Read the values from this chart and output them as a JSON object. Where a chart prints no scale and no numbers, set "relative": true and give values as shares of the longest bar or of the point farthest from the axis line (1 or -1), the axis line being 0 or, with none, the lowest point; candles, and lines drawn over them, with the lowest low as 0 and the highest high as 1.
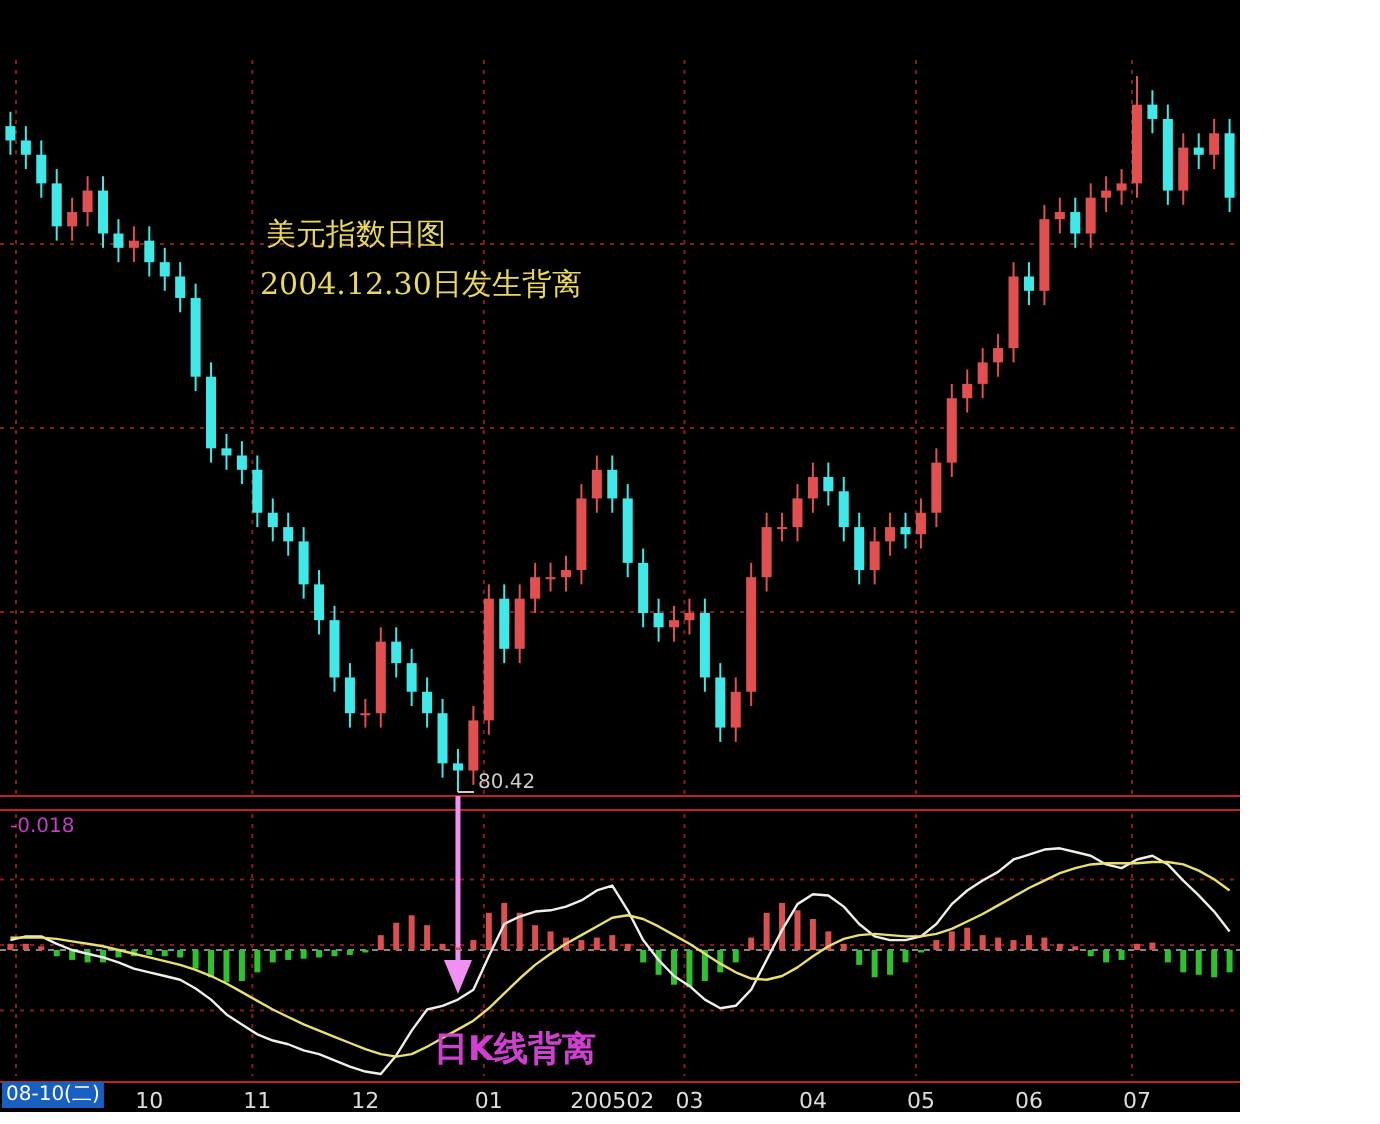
{
  "chart_data": [
    {
      "type": "candlestick",
      "relative": true,
      "tick_labels": false,
      "grid": true,
      "colors": [
        "#40e8e8",
        "#40e8e8",
        "#40e8e8",
        "#40e8e8",
        "#e05050",
        "#e05050",
        "#40e8e8",
        "#40e8e8",
        "#e05050",
        "#40e8e8",
        "#40e8e8",
        "#40e8e8",
        "#40e8e8",
        "#40e8e8",
        "#40e8e8",
        "#40e8e8",
        "#40e8e8",
        "#40e8e8",
        "#40e8e8",
        "#40e8e8",
        "#40e8e8",
        "#40e8e8",
        "#40e8e8",
        "#e05050",
        "#e05050",
        "#40e8e8",
        "#40e8e8",
        "#40e8e8",
        "#40e8e8",
        "#40e8e8",
        "#e05050",
        "#e05050",
        "#40e8e8",
        "#e05050",
        "#e05050",
        "#e05050",
        "#e05050",
        "#e05050",
        "#e05050",
        "#40e8e8",
        "#40e8e8",
        "#40e8e8",
        "#40e8e8",
        "#e05050",
        "#e05050",
        "#40e8e8",
        "#40e8e8",
        "#e05050",
        "#e05050",
        "#e05050",
        "#e05050",
        "#e05050",
        "#e05050",
        "#40e8e8",
        "#40e8e8",
        "#40e8e8",
        "#e05050",
        "#e05050",
        "#40e8e8",
        "#e05050",
        "#e05050",
        "#e05050",
        "#e05050",
        "#e05050",
        "#e05050",
        "#e05050",
        "#40e8e8",
        "#e05050",
        "#e05050",
        "#40e8e8",
        "#e05050",
        "#e05050",
        "#e05050",
        "#e05050",
        "#40e8e8",
        "#40e8e8",
        "#e05050",
        "#40e8e8",
        "#e05050",
        "#40e8e8"
      ],
      "annotations": [
        "美元指数日图",
        "2004.12.30日发生背离",
        "80.42"
      ],
      "categories": [
        null,
        null,
        null,
        null,
        null,
        null,
        null,
        null,
        null,
        "10",
        null,
        null,
        null,
        null,
        null,
        null,
        "11",
        null,
        null,
        null,
        null,
        null,
        null,
        "12",
        null,
        null,
        null,
        null,
        null,
        null,
        null,
        "01",
        null,
        null,
        null,
        null,
        null,
        null,
        null,
        "200502",
        null,
        null,
        null,
        null,
        "03",
        null,
        null,
        null,
        null,
        null,
        null,
        null,
        "04",
        null,
        null,
        null,
        null,
        null,
        null,
        "05",
        null,
        null,
        null,
        null,
        null,
        null,
        "06",
        null,
        null,
        null,
        null,
        null,
        null,
        "07",
        null,
        null,
        null,
        null,
        null,
        null
      ],
      "ohlc": [
        [
          0.93,
          0.95,
          0.89,
          0.91
        ],
        [
          0.91,
          0.93,
          0.87,
          0.89
        ],
        [
          0.89,
          0.91,
          0.83,
          0.85
        ],
        [
          0.85,
          0.87,
          0.77,
          0.79
        ],
        [
          0.79,
          0.83,
          0.77,
          0.81
        ],
        [
          0.81,
          0.86,
          0.79,
          0.84
        ],
        [
          0.84,
          0.86,
          0.76,
          0.78
        ],
        [
          0.78,
          0.8,
          0.74,
          0.76
        ],
        [
          0.76,
          0.79,
          0.74,
          0.77
        ],
        [
          0.77,
          0.79,
          0.72,
          0.74
        ],
        [
          0.74,
          0.76,
          0.7,
          0.72
        ],
        [
          0.72,
          0.74,
          0.67,
          0.69
        ],
        [
          0.69,
          0.71,
          0.56,
          0.58
        ],
        [
          0.58,
          0.6,
          0.46,
          0.48
        ],
        [
          0.48,
          0.5,
          0.45,
          0.47
        ],
        [
          0.47,
          0.49,
          0.43,
          0.45
        ],
        [
          0.45,
          0.47,
          0.37,
          0.39
        ],
        [
          0.39,
          0.41,
          0.35,
          0.37
        ],
        [
          0.37,
          0.39,
          0.33,
          0.35
        ],
        [
          0.35,
          0.37,
          0.27,
          0.29
        ],
        [
          0.29,
          0.31,
          0.22,
          0.24
        ],
        [
          0.24,
          0.26,
          0.14,
          0.16
        ],
        [
          0.16,
          0.18,
          0.09,
          0.11
        ],
        [
          0.11,
          0.13,
          0.09,
          0.11
        ],
        [
          0.11,
          0.23,
          0.09,
          0.21
        ],
        [
          0.21,
          0.23,
          0.16,
          0.18
        ],
        [
          0.18,
          0.2,
          0.12,
          0.14
        ],
        [
          0.14,
          0.16,
          0.09,
          0.11
        ],
        [
          0.11,
          0.13,
          0.02,
          0.04
        ],
        [
          0.04,
          0.06,
          0.0,
          0.03
        ],
        [
          0.03,
          0.12,
          0.01,
          0.1
        ],
        [
          0.1,
          0.29,
          0.08,
          0.27
        ],
        [
          0.27,
          0.29,
          0.18,
          0.2
        ],
        [
          0.2,
          0.29,
          0.18,
          0.27
        ],
        [
          0.27,
          0.32,
          0.25,
          0.3
        ],
        [
          0.3,
          0.32,
          0.28,
          0.3
        ],
        [
          0.3,
          0.33,
          0.28,
          0.31
        ],
        [
          0.31,
          0.43,
          0.29,
          0.41
        ],
        [
          0.41,
          0.47,
          0.39,
          0.45
        ],
        [
          0.45,
          0.47,
          0.39,
          0.41
        ],
        [
          0.41,
          0.43,
          0.3,
          0.32
        ],
        [
          0.32,
          0.34,
          0.23,
          0.25
        ],
        [
          0.25,
          0.27,
          0.21,
          0.23
        ],
        [
          0.23,
          0.26,
          0.21,
          0.24
        ],
        [
          0.24,
          0.27,
          0.22,
          0.25
        ],
        [
          0.25,
          0.27,
          0.14,
          0.16
        ],
        [
          0.16,
          0.18,
          0.07,
          0.09
        ],
        [
          0.09,
          0.16,
          0.07,
          0.14
        ],
        [
          0.14,
          0.32,
          0.12,
          0.3
        ],
        [
          0.3,
          0.39,
          0.28,
          0.37
        ],
        [
          0.37,
          0.39,
          0.35,
          0.37
        ],
        [
          0.37,
          0.43,
          0.35,
          0.41
        ],
        [
          0.41,
          0.46,
          0.39,
          0.44
        ],
        [
          0.44,
          0.46,
          0.4,
          0.42
        ],
        [
          0.42,
          0.44,
          0.35,
          0.37
        ],
        [
          0.37,
          0.39,
          0.29,
          0.31
        ],
        [
          0.31,
          0.37,
          0.29,
          0.35
        ],
        [
          0.35,
          0.39,
          0.33,
          0.37
        ],
        [
          0.37,
          0.39,
          0.34,
          0.36
        ],
        [
          0.36,
          0.41,
          0.34,
          0.39
        ],
        [
          0.39,
          0.48,
          0.37,
          0.46
        ],
        [
          0.46,
          0.57,
          0.44,
          0.55
        ],
        [
          0.55,
          0.59,
          0.53,
          0.57
        ],
        [
          0.57,
          0.62,
          0.55,
          0.6
        ],
        [
          0.6,
          0.64,
          0.58,
          0.62
        ],
        [
          0.62,
          0.74,
          0.6,
          0.72
        ],
        [
          0.72,
          0.74,
          0.68,
          0.7
        ],
        [
          0.7,
          0.82,
          0.68,
          0.8
        ],
        [
          0.8,
          0.83,
          0.78,
          0.81
        ],
        [
          0.81,
          0.83,
          0.76,
          0.78
        ],
        [
          0.78,
          0.85,
          0.76,
          0.83
        ],
        [
          0.83,
          0.86,
          0.81,
          0.84
        ],
        [
          0.84,
          0.87,
          0.82,
          0.85
        ],
        [
          0.85,
          1.0,
          0.83,
          0.96
        ],
        [
          0.96,
          0.98,
          0.92,
          0.94
        ],
        [
          0.94,
          0.96,
          0.82,
          0.84
        ],
        [
          0.84,
          0.92,
          0.82,
          0.9
        ],
        [
          0.9,
          0.92,
          0.87,
          0.89
        ],
        [
          0.89,
          0.94,
          0.87,
          0.92
        ],
        [
          0.92,
          0.94,
          0.81,
          0.83
        ]
      ]
    },
    {
      "type": "line",
      "relative": true,
      "grid": true,
      "ref_lines": [
        {
          "axis": "y",
          "value": 0,
          "color": "#888888",
          "line_style": "dashed"
        }
      ],
      "annotations": [
        "-0.018",
        "日K线背离",
        "08-10(二)"
      ],
      "categories": [
        null,
        null,
        null,
        null,
        null,
        null,
        null,
        null,
        null,
        "10",
        null,
        null,
        null,
        null,
        null,
        null,
        "11",
        null,
        null,
        null,
        null,
        null,
        null,
        "12",
        null,
        null,
        null,
        null,
        null,
        null,
        null,
        "01",
        null,
        null,
        null,
        null,
        null,
        null,
        null,
        "200502",
        null,
        null,
        null,
        null,
        "03",
        null,
        null,
        null,
        null,
        null,
        null,
        null,
        "04",
        null,
        null,
        null,
        null,
        null,
        null,
        "05",
        null,
        null,
        null,
        null,
        null,
        null,
        "06",
        null,
        null,
        null,
        null,
        null,
        null,
        "07",
        null,
        null,
        null,
        null,
        null,
        null
      ],
      "series": [
        {
          "type": "bar",
          "color": "#d85050",
          "values": [
            0.05,
            0.05,
            0.03,
            null,
            null,
            null,
            null,
            null,
            null,
            null,
            null,
            null,
            null,
            null,
            null,
            null,
            null,
            null,
            null,
            null,
            null,
            null,
            null,
            null,
            0.12,
            0.22,
            0.28,
            0.2,
            0.05,
            0.02,
            0.08,
            0.3,
            0.38,
            0.3,
            0.2,
            0.15,
            0.1,
            0.08,
            0.1,
            0.12,
            0.05,
            null,
            null,
            null,
            null,
            null,
            null,
            null,
            0.1,
            0.3,
            0.38,
            0.32,
            0.25,
            0.15,
            0.05,
            null,
            null,
            null,
            null,
            null,
            0.08,
            0.15,
            0.18,
            0.12,
            0.1,
            0.08,
            0.12,
            0.1,
            0.05,
            0.03,
            null,
            null,
            null,
            0.05,
            0.06,
            null,
            null,
            null,
            null,
            null
          ]
        },
        {
          "type": "bar",
          "color": "#30c030",
          "values": [
            null,
            null,
            null,
            -0.05,
            -0.08,
            -0.1,
            -0.1,
            -0.06,
            -0.05,
            -0.04,
            -0.05,
            -0.06,
            -0.15,
            -0.22,
            -0.26,
            -0.25,
            -0.18,
            -0.1,
            -0.08,
            -0.07,
            -0.06,
            -0.05,
            -0.04,
            -0.02,
            null,
            null,
            null,
            null,
            null,
            null,
            null,
            null,
            null,
            null,
            null,
            null,
            null,
            null,
            null,
            null,
            null,
            -0.1,
            -0.2,
            -0.28,
            -0.3,
            -0.25,
            -0.18,
            -0.1,
            null,
            null,
            null,
            null,
            null,
            null,
            null,
            -0.12,
            -0.22,
            -0.2,
            -0.1,
            -0.02,
            null,
            null,
            null,
            null,
            null,
            null,
            null,
            null,
            null,
            null,
            -0.05,
            -0.1,
            -0.08,
            null,
            null,
            -0.1,
            -0.18,
            -0.2,
            -0.22,
            -0.18
          ]
        },
        {
          "color": "#f0f0e8",
          "values": [
            0.08,
            0.11,
            0.11,
            0.05,
            0.0,
            -0.03,
            -0.06,
            -0.1,
            -0.15,
            -0.18,
            -0.21,
            -0.24,
            -0.31,
            -0.4,
            -0.52,
            -0.6,
            -0.68,
            -0.73,
            -0.76,
            -0.81,
            -0.84,
            -0.89,
            -0.94,
            -0.98,
            -1.0,
            -0.85,
            -0.65,
            -0.48,
            -0.45,
            -0.4,
            -0.32,
            -0.05,
            0.21,
            0.27,
            0.31,
            0.32,
            0.35,
            0.4,
            0.48,
            0.52,
            0.32,
            0.08,
            -0.08,
            -0.21,
            -0.29,
            -0.4,
            -0.47,
            -0.45,
            -0.32,
            -0.08,
            0.16,
            0.37,
            0.45,
            0.44,
            0.35,
            0.21,
            0.11,
            0.08,
            0.08,
            0.11,
            0.21,
            0.37,
            0.48,
            0.56,
            0.63,
            0.73,
            0.77,
            0.81,
            0.82,
            0.79,
            0.76,
            0.69,
            0.66,
            0.73,
            0.76,
            0.69,
            0.56,
            0.44,
            0.31,
            0.15
          ]
        },
        {
          "color": "#e8e070",
          "values": [
            0.1,
            0.1,
            0.1,
            0.09,
            0.07,
            0.05,
            0.03,
            0.0,
            -0.03,
            -0.06,
            -0.09,
            -0.12,
            -0.16,
            -0.21,
            -0.27,
            -0.34,
            -0.41,
            -0.48,
            -0.54,
            -0.6,
            -0.65,
            -0.7,
            -0.75,
            -0.8,
            -0.84,
            -0.86,
            -0.84,
            -0.78,
            -0.71,
            -0.64,
            -0.57,
            -0.47,
            -0.35,
            -0.23,
            -0.12,
            -0.03,
            0.05,
            0.12,
            0.19,
            0.26,
            0.28,
            0.25,
            0.19,
            0.12,
            0.05,
            -0.03,
            -0.11,
            -0.18,
            -0.23,
            -0.24,
            -0.21,
            -0.14,
            -0.05,
            0.03,
            0.09,
            0.12,
            0.13,
            0.12,
            0.11,
            0.11,
            0.13,
            0.17,
            0.23,
            0.29,
            0.36,
            0.43,
            0.5,
            0.56,
            0.62,
            0.66,
            0.69,
            0.7,
            0.7,
            0.7,
            0.71,
            0.71,
            0.69,
            0.64,
            0.57,
            0.48
          ]
        }
      ]
    }
  ]
}
